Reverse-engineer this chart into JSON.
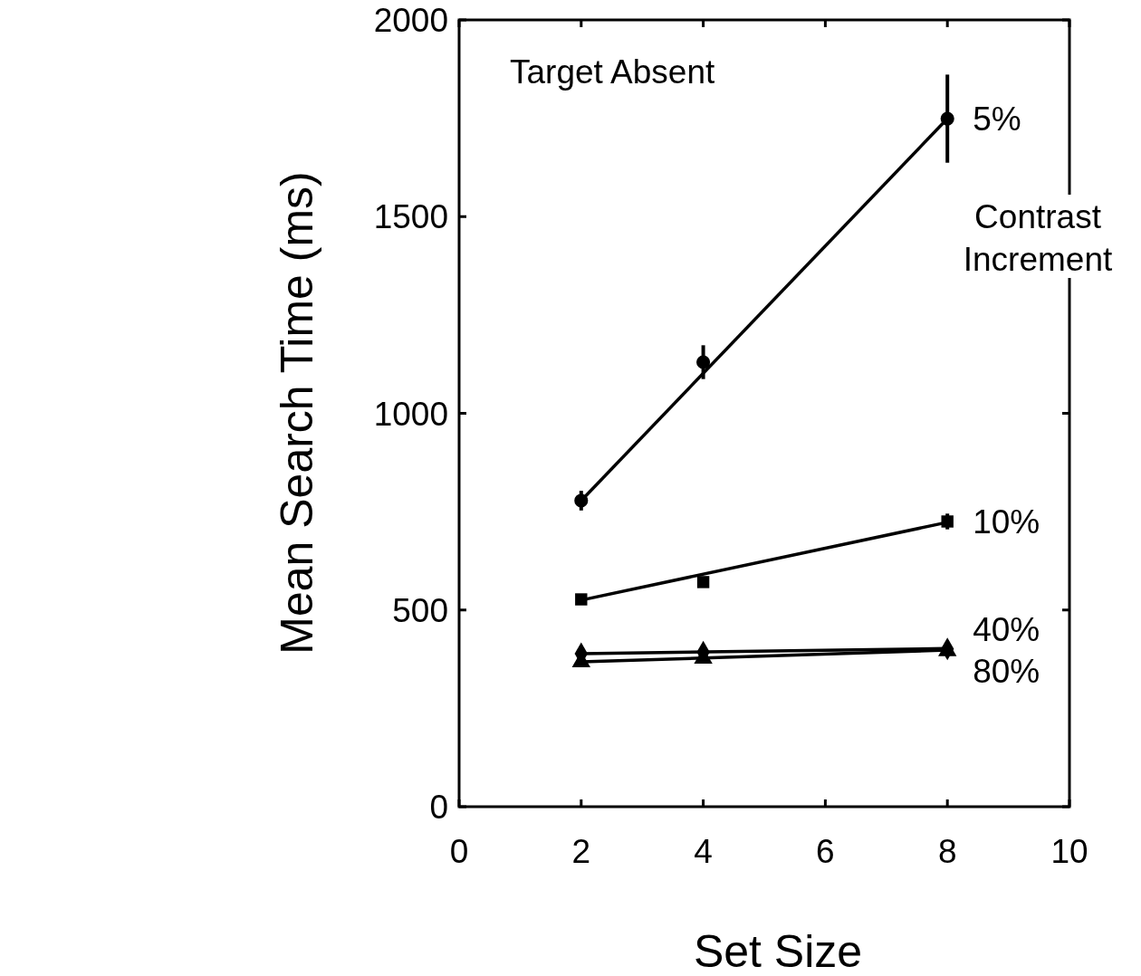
{
  "chart_data": {
    "type": "scatter",
    "xlabel": "Set Size",
    "ylabel": "Mean Search Time (ms)",
    "legend_title": "Contrast Increment",
    "annotations": [
      "Target Absent"
    ],
    "xlim": [
      0,
      10
    ],
    "xticks": [
      0,
      2,
      4,
      6,
      8,
      10
    ],
    "ylim": [
      0,
      2000
    ],
    "yticks": [
      0,
      500,
      1000,
      1500,
      2000
    ],
    "series": [
      {
        "name": "5%",
        "marker": "circle",
        "color": "#000000",
        "x": [
          2,
          4,
          8
        ],
        "values": [
          778,
          1130,
          1749
        ],
        "errors": [
          25,
          43,
          112
        ]
      },
      {
        "name": "10%",
        "marker": "square",
        "color": "#000000",
        "x": [
          2,
          4,
          8
        ],
        "values": [
          527,
          571,
          725
        ],
        "errors": [
          10,
          12,
          20
        ]
      },
      {
        "name": "40%",
        "marker": "diamond",
        "color": "#000000",
        "x": [
          2,
          4,
          8
        ],
        "values": [
          389,
          393,
          401
        ]
      },
      {
        "name": "80%",
        "marker": "triangle",
        "color": "#000000",
        "x": [
          2,
          4,
          8
        ],
        "values": [
          368,
          377,
          396
        ]
      },
      {
        "type": "line",
        "color": "#000000",
        "x": [
          2,
          8
        ],
        "values": [
          778,
          1749
        ]
      },
      {
        "type": "line",
        "color": "#000000",
        "x": [
          2,
          8
        ],
        "values": [
          525,
          723
        ]
      },
      {
        "type": "line",
        "color": "#000000",
        "x": [
          2,
          8
        ],
        "values": [
          389,
          402
        ]
      },
      {
        "type": "line",
        "color": "#000000",
        "x": [
          2,
          8
        ],
        "values": [
          368,
          398
        ]
      }
    ]
  }
}
